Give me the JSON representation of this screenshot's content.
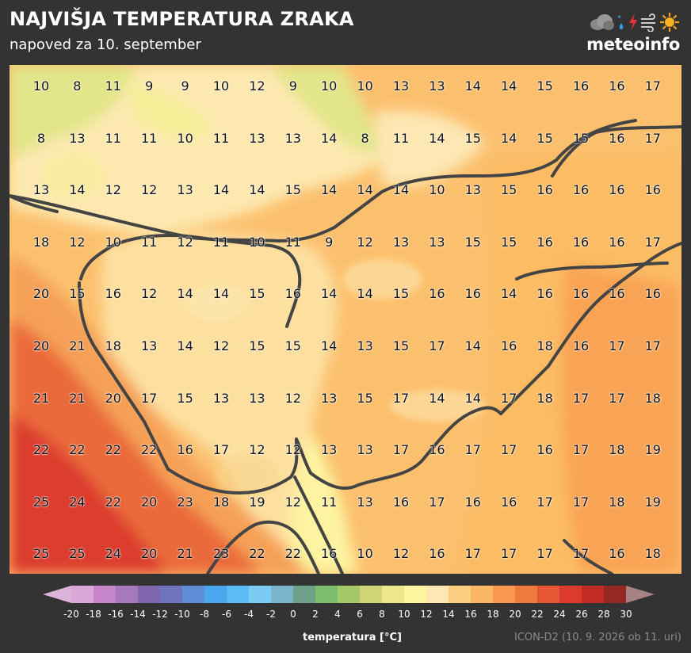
{
  "header": {
    "title": "NAJVIŠJA TEMPERATURA ZRAKA",
    "subtitle": "napoved za 10. september"
  },
  "logo": {
    "text": "meteoinfo",
    "icons": [
      "cloud-icon",
      "rain-snow-icon",
      "lightning-icon",
      "wind-icon",
      "sun-icon"
    ]
  },
  "temperature_grid": [
    [
      10,
      8,
      11,
      9,
      9,
      10,
      12,
      9,
      10,
      10,
      13,
      13,
      14,
      14,
      15,
      16,
      16,
      17
    ],
    [
      8,
      13,
      11,
      11,
      10,
      11,
      13,
      13,
      14,
      8,
      11,
      14,
      15,
      14,
      15,
      15,
      16,
      17
    ],
    [
      13,
      14,
      12,
      12,
      13,
      14,
      14,
      15,
      14,
      14,
      14,
      10,
      13,
      15,
      16,
      16,
      16,
      16
    ],
    [
      18,
      12,
      10,
      11,
      12,
      11,
      10,
      11,
      9,
      12,
      13,
      13,
      15,
      15,
      16,
      16,
      16,
      17
    ],
    [
      20,
      15,
      16,
      12,
      14,
      14,
      15,
      16,
      14,
      14,
      15,
      16,
      16,
      14,
      16,
      16,
      16,
      16
    ],
    [
      20,
      21,
      18,
      13,
      14,
      12,
      15,
      15,
      14,
      13,
      15,
      17,
      14,
      16,
      18,
      16,
      17,
      17
    ],
    [
      21,
      21,
      20,
      17,
      15,
      13,
      13,
      12,
      13,
      15,
      17,
      14,
      14,
      17,
      18,
      17,
      17,
      18
    ],
    [
      22,
      22,
      22,
      22,
      16,
      17,
      12,
      12,
      13,
      13,
      17,
      16,
      17,
      17,
      16,
      17,
      18,
      19
    ],
    [
      25,
      24,
      22,
      20,
      23,
      18,
      19,
      12,
      11,
      13,
      16,
      17,
      16,
      16,
      17,
      17,
      18,
      19
    ],
    [
      25,
      25,
      24,
      20,
      21,
      23,
      22,
      22,
      16,
      10,
      12,
      16,
      17,
      17,
      17,
      17,
      16,
      18
    ]
  ],
  "legend": {
    "label": "temperatura [°C]",
    "ticks": [
      "-20",
      "-18",
      "-16",
      "-14",
      "-12",
      "-10",
      "-8",
      "-6",
      "-4",
      "-2",
      "0",
      "2",
      "4",
      "6",
      "8",
      "10",
      "12",
      "14",
      "16",
      "18",
      "20",
      "22",
      "24",
      "26",
      "28",
      "30"
    ],
    "colors": [
      "#dba7d6",
      "#c585c8",
      "#a679bd",
      "#8168ae",
      "#6e74bd",
      "#5e8fd6",
      "#4aa7ef",
      "#5bbbf5",
      "#7ccbf3",
      "#7ab5c9",
      "#6fa08a",
      "#7cbd6b",
      "#a5c96a",
      "#cfd574",
      "#ede98a",
      "#fdf4a0",
      "#fde8b4",
      "#fdce7f",
      "#fbb764",
      "#f9984e",
      "#f07a3e",
      "#e45634",
      "#dc3a2c",
      "#c22a26",
      "#962824"
    ],
    "under_color": "#dcb3d8",
    "over_color": "#a88282"
  },
  "model_info": "ICON-D2 (10. 9. 2026 ob 11. uri)"
}
